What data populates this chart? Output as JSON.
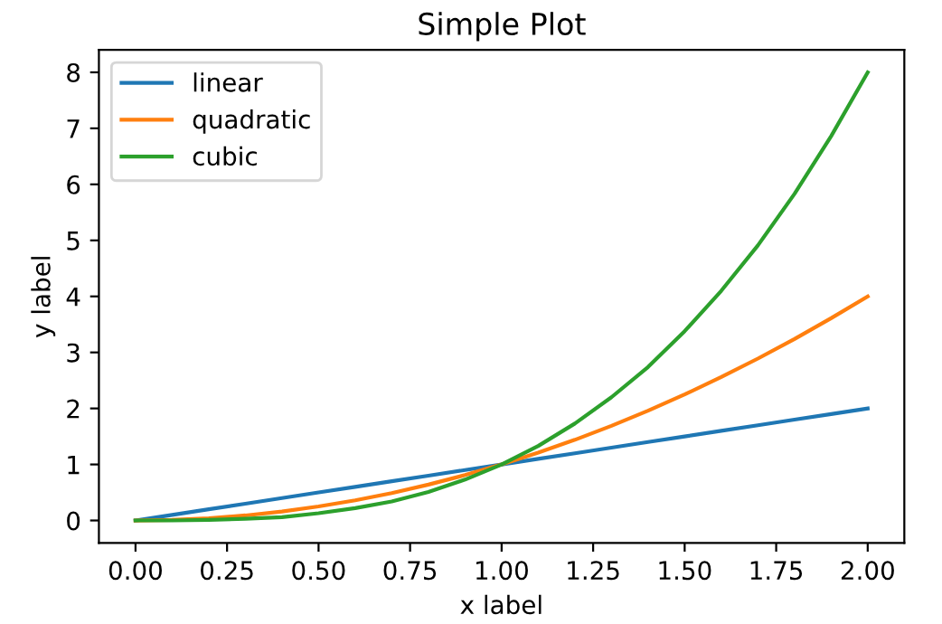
{
  "chart_data": {
    "type": "line",
    "title": "Simple Plot",
    "xlabel": "x label",
    "ylabel": "y label",
    "x": [
      0,
      0.1,
      0.2,
      0.3,
      0.4,
      0.5,
      0.6,
      0.7,
      0.8,
      0.9,
      1.0,
      1.1,
      1.2,
      1.3,
      1.4,
      1.5,
      1.6,
      1.7,
      1.8,
      1.9,
      2.0
    ],
    "series": [
      {
        "name": "linear",
        "color": "#1f77b4",
        "values": [
          0,
          0.1,
          0.2,
          0.3,
          0.4,
          0.5,
          0.6,
          0.7,
          0.8,
          0.9,
          1.0,
          1.1,
          1.2,
          1.3,
          1.4,
          1.5,
          1.6,
          1.7,
          1.8,
          1.9,
          2.0
        ]
      },
      {
        "name": "quadratic",
        "color": "#ff7f0e",
        "values": [
          0,
          0.01,
          0.04,
          0.09,
          0.16,
          0.25,
          0.36,
          0.49,
          0.64,
          0.81,
          1.0,
          1.21,
          1.44,
          1.69,
          1.96,
          2.25,
          2.56,
          2.89,
          3.24,
          3.61,
          4.0
        ]
      },
      {
        "name": "cubic",
        "color": "#2ca02c",
        "values": [
          0,
          0,
          0.01,
          0.03,
          0.06,
          0.13,
          0.22,
          0.34,
          0.51,
          0.73,
          1.0,
          1.33,
          1.73,
          2.2,
          2.74,
          3.38,
          4.1,
          4.91,
          5.83,
          6.86,
          8.0
        ]
      }
    ],
    "xlim": [
      -0.1,
      2.1
    ],
    "ylim": [
      -0.4,
      8.4
    ],
    "xticks": [
      {
        "value": 0,
        "label": "0.00"
      },
      {
        "value": 0.25,
        "label": "0.25"
      },
      {
        "value": 0.5,
        "label": "0.50"
      },
      {
        "value": 0.75,
        "label": "0.75"
      },
      {
        "value": 1.0,
        "label": "1.00"
      },
      {
        "value": 1.25,
        "label": "1.25"
      },
      {
        "value": 1.5,
        "label": "1.50"
      },
      {
        "value": 1.75,
        "label": "1.75"
      },
      {
        "value": 2.0,
        "label": "2.00"
      }
    ],
    "yticks": [
      0,
      1,
      2,
      3,
      4,
      5,
      6,
      7,
      8
    ],
    "grid": false,
    "legend": "top left",
    "marker": "none",
    "line_style": "solid"
  }
}
